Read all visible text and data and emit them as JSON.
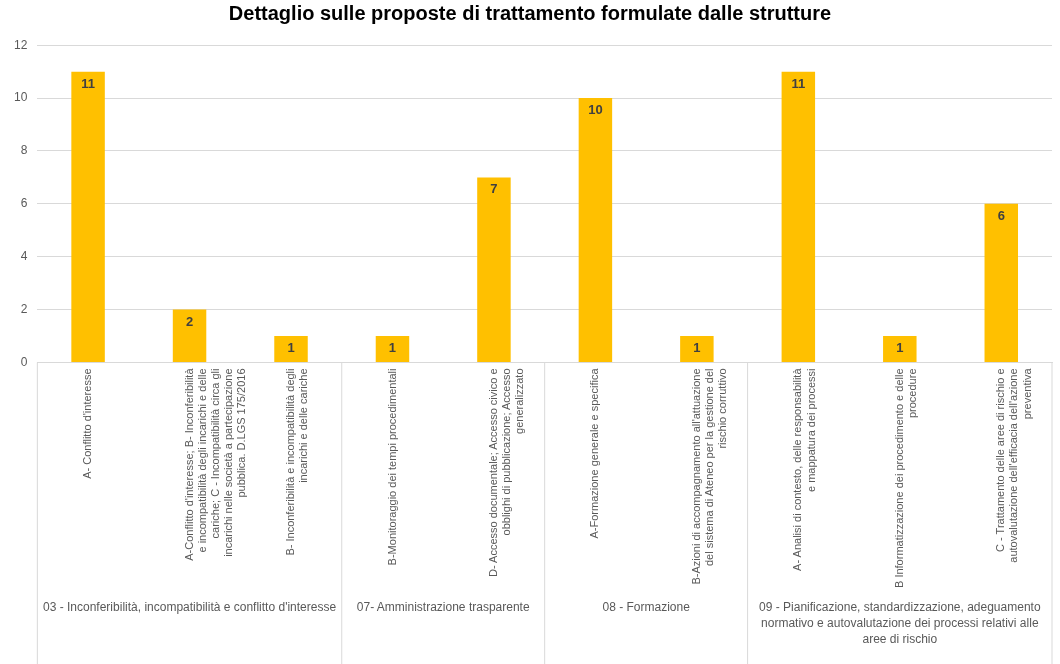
{
  "chart_data": {
    "type": "bar",
    "title": "Dettaglio sulle proposte di trattamento formulate dalle strutture",
    "categories": [
      "A- Conflitto d'interesse",
      "A-Conflitto d'interesse; B- Inconferibilità e incompatibilità degli incarichi e delle cariche; C - Incompatibilità circa gli incarichi nelle società a partecipazione pubblica. D.LGS 175/2016",
      "B- Inconferibilità e incompatibilità degli incarichi e delle cariche",
      "B-Monitoraggio dei tempi procedimentali",
      "D- Accesso documentale; Accesso civico e obblighi di pubblicazione; Accesso generalizzato",
      "A-Formazione generale e specifica",
      "B-Azioni di accompagnamento all'attuazione del sistema di Ateneo per la gestione del rischio corruttivo",
      "A- Analisi di contesto, delle responsabilità e mappatura dei processi",
      "B Informatizzazione dei procedimento e delle procedure",
      "C - Trattamento delle aree di rischio e autovalutazione dell'efficacia dell'azione preventiva"
    ],
    "values": [
      11,
      2,
      1,
      1,
      7,
      10,
      1,
      11,
      1,
      6
    ],
    "color": "#ffc000",
    "ylim": [
      0,
      12
    ],
    "yticks": [
      0,
      2,
      4,
      6,
      8,
      10,
      12
    ],
    "grid": "y",
    "data_labels": true,
    "annotations": [
      "03 - Inconferibilità, incompatibilità e conflitto d'interesse",
      "07- Amministrazione trasparente",
      "08 - Formazione",
      "09 - Pianificazione, standardizzazione, adeguamento normativo e autovalutazione dei processi relativi alle aree di rischio"
    ]
  }
}
